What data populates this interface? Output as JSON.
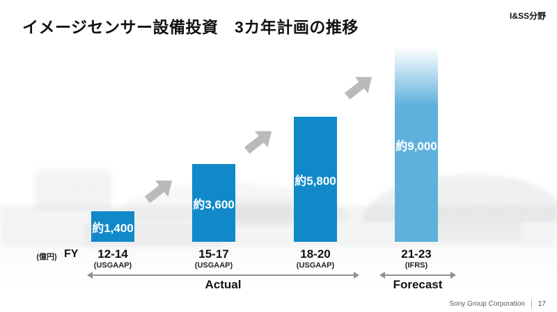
{
  "slide": {
    "title": "イメージセンサー設備投資　3カ年計画の推移",
    "corner_tag": "I&SS分野",
    "footer": {
      "company": "Sony Group Corporation",
      "page_number": "17"
    }
  },
  "chart_data": {
    "type": "bar",
    "title": "イメージセンサー設備投資 3カ年計画の推移",
    "unit_label": "(億円)",
    "axis_prefix": "FY",
    "categories": [
      "12-14",
      "15-17",
      "18-20",
      "21-23"
    ],
    "accounting_standards": [
      "(USGAAP)",
      "(USGAAP)",
      "(USGAAP)",
      "(IFRS)"
    ],
    "values": [
      1400,
      3600,
      5800,
      9000
    ],
    "value_labels": [
      "約1,400",
      "約3,600",
      "約5,800",
      "約9,000"
    ],
    "value_unit": "億円",
    "ylim": [
      0,
      9000
    ],
    "grid": false,
    "legend": "none",
    "forecast_index": 3,
    "phases": [
      {
        "label": "Actual",
        "categories": [
          "12-14",
          "15-17",
          "18-20"
        ]
      },
      {
        "label": "Forecast",
        "categories": [
          "21-23"
        ]
      }
    ],
    "colors": {
      "actual_bar": "#1189C9",
      "forecast_bar": "#5FB1DC",
      "forecast_bar_top": "#FFFFFF",
      "value_label_text": "#FFFFFF",
      "growth_arrow": "#BABABA"
    }
  }
}
